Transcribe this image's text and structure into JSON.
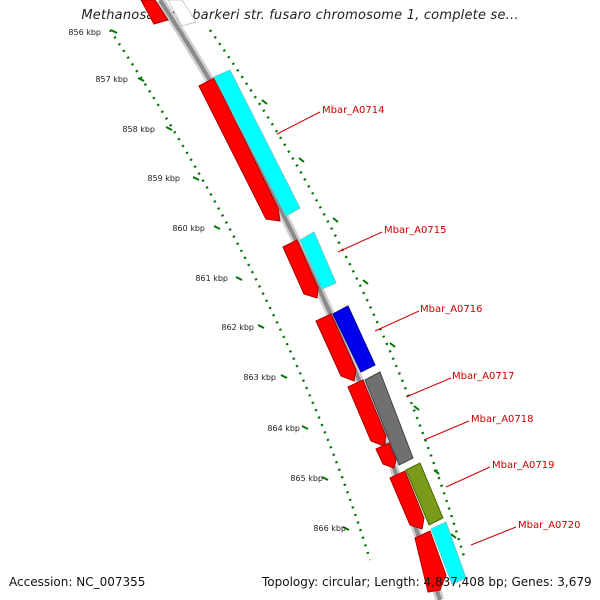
{
  "title": "Methanosarcina barkeri str. fusaro chromosome 1, complete se...",
  "footer": {
    "accession": "Accession: NC_007355",
    "summary": "Topology: circular; Length: 4,837,408 bp; Genes: 3,679"
  },
  "ruler_labels": [
    "856 kbp",
    "857 kbp",
    "858 kbp",
    "859 kbp",
    "860 kbp",
    "861 kbp",
    "862 kbp",
    "863 kbp",
    "864 kbp",
    "865 kbp",
    "866 kbp"
  ],
  "gene_labels": [
    "Mbar_A0714",
    "Mbar_A0715",
    "Mbar_A0716",
    "Mbar_A0717",
    "Mbar_A0718",
    "Mbar_A0719",
    "Mbar_A0720"
  ],
  "colors": {
    "cds": "#ff0000",
    "cog_cyan": "#00ffff",
    "cog_blue": "#0000ee",
    "cog_gray": "#707070",
    "cog_olive": "#7a9a1a",
    "ruler": "#007700",
    "label": "#cc0000",
    "backbone": "#8a8a8a"
  }
}
